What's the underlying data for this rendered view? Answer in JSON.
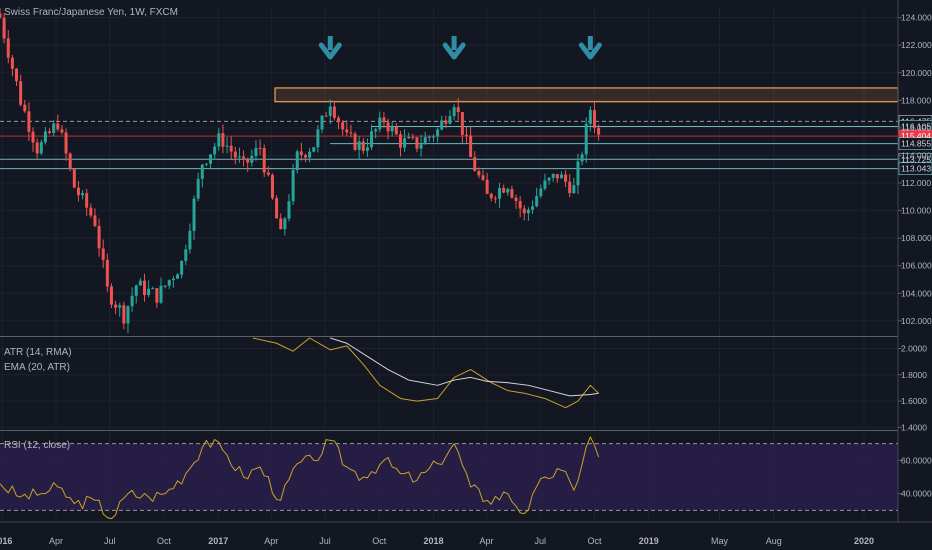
{
  "header": {
    "title": "Swiss Franc/Japanese Yen, 1W, FXCM"
  },
  "indicators": {
    "atr_label": "ATR (14, RMA)",
    "ema_label": "EMA (20, ATR)",
    "rsi_label": "RSI (12, close)"
  },
  "colors": {
    "background": "#131722",
    "up": "#26a69a",
    "down": "#ef5350",
    "arrow": "#2f8ea6",
    "resistance": "#f0a050",
    "atr_line": "#c9a227",
    "ema_line": "#d8d8d8",
    "rsi_line": "#c9a227",
    "rsi_band": "#2a1f4a",
    "support": "#7fd3d6",
    "current_price": "#f23645"
  },
  "chart_data": [
    {
      "type": "candlestick",
      "title": "Swiss Franc/Japanese Yen, 1W, FXCM",
      "ylim": [
        100.9,
        124.7
      ],
      "y_ticks": [
        "124.000",
        "122.000",
        "120.000",
        "118.000",
        "116.000",
        "114.000",
        "112.000",
        "110.000",
        "108.000",
        "106.000",
        "104.000",
        "102.000"
      ],
      "x_labels": [
        "2016",
        "Apr",
        "Jul",
        "Oct",
        "2017",
        "Apr",
        "Jul",
        "Oct",
        "2018",
        "Apr",
        "Jul",
        "Oct",
        "2019",
        "May",
        "Aug",
        "2020"
      ],
      "close_path": [
        {
          "date": "2015-12-28",
          "close": 124.0
        },
        {
          "date": "2016-02-01",
          "close": 118.0
        },
        {
          "date": "2016-03-01",
          "close": 114.4
        },
        {
          "date": "2016-04-04",
          "close": 116.4
        },
        {
          "date": "2016-05-01",
          "close": 111.8
        },
        {
          "date": "2016-06-06",
          "close": 109.2
        },
        {
          "date": "2016-06-27",
          "close": 104.2
        },
        {
          "date": "2016-07-25",
          "close": 102.4
        },
        {
          "date": "2016-08-15",
          "close": 104.6
        },
        {
          "date": "2016-09-20",
          "close": 103.8
        },
        {
          "date": "2016-10-31",
          "close": 106.2
        },
        {
          "date": "2016-12-05",
          "close": 113.5
        },
        {
          "date": "2017-01-05",
          "close": 115.3
        },
        {
          "date": "2017-02-13",
          "close": 113.2
        },
        {
          "date": "2017-03-13",
          "close": 114.6
        },
        {
          "date": "2017-04-17",
          "close": 108.1
        },
        {
          "date": "2017-05-15",
          "close": 113.9
        },
        {
          "date": "2017-06-12",
          "close": 114.8
        },
        {
          "date": "2017-07-10",
          "close": 118.0
        },
        {
          "date": "2017-08-07",
          "close": 115.2
        },
        {
          "date": "2017-09-04",
          "close": 114.6
        },
        {
          "date": "2017-10-09",
          "close": 116.6
        },
        {
          "date": "2017-11-06",
          "close": 115.0
        },
        {
          "date": "2017-12-04",
          "close": 114.8
        },
        {
          "date": "2018-01-08",
          "close": 115.8
        },
        {
          "date": "2018-02-05",
          "close": 118.0
        },
        {
          "date": "2018-03-05",
          "close": 113.8
        },
        {
          "date": "2018-04-02",
          "close": 111.0
        },
        {
          "date": "2018-05-07",
          "close": 112.0
        },
        {
          "date": "2018-06-04",
          "close": 109.6
        },
        {
          "date": "2018-07-02",
          "close": 111.6
        },
        {
          "date": "2018-07-30",
          "close": 112.6
        },
        {
          "date": "2018-08-27",
          "close": 111.6
        },
        {
          "date": "2018-09-17",
          "close": 115.8
        },
        {
          "date": "2018-09-24",
          "close": 117.4
        },
        {
          "date": "2018-10-08",
          "close": 115.4
        }
      ],
      "horizontal_levels": [
        {
          "value": 116.475,
          "label": "116.475",
          "style": "dashed"
        },
        {
          "value": 116.105,
          "label": "116.105",
          "style": "support"
        },
        {
          "value": 115.404,
          "label": "115.404",
          "style": "current"
        },
        {
          "value": 114.855,
          "label": "114.855",
          "style": "support"
        },
        {
          "value": 113.725,
          "label": "113.725",
          "style": "support"
        },
        {
          "value": 113.043,
          "label": "113.043",
          "style": "support"
        }
      ],
      "resistance_zone": [
        117.9,
        118.9
      ],
      "arrows_at": [
        "2017-07-10",
        "2018-02-05",
        "2018-09-24"
      ]
    },
    {
      "type": "line",
      "title": "ATR (14, RMA)",
      "ylim": [
        1.38,
        2.08
      ],
      "y_ticks": [
        "2.0000",
        "1.8000",
        "1.6000",
        "1.4000"
      ],
      "series": [
        {
          "name": "ATR (14, RMA)",
          "points": [
            {
              "date": "2017-03-01",
              "v": 2.1
            },
            {
              "date": "2017-04-10",
              "v": 2.04
            },
            {
              "date": "2017-05-08",
              "v": 1.98
            },
            {
              "date": "2017-06-05",
              "v": 2.08
            },
            {
              "date": "2017-07-10",
              "v": 1.99
            },
            {
              "date": "2017-08-07",
              "v": 2.02
            },
            {
              "date": "2017-09-04",
              "v": 1.88
            },
            {
              "date": "2017-10-02",
              "v": 1.72
            },
            {
              "date": "2017-11-06",
              "v": 1.62
            },
            {
              "date": "2017-12-04",
              "v": 1.6
            },
            {
              "date": "2018-01-08",
              "v": 1.62
            },
            {
              "date": "2018-02-05",
              "v": 1.78
            },
            {
              "date": "2018-03-05",
              "v": 1.84
            },
            {
              "date": "2018-04-09",
              "v": 1.74
            },
            {
              "date": "2018-05-07",
              "v": 1.68
            },
            {
              "date": "2018-06-04",
              "v": 1.66
            },
            {
              "date": "2018-07-09",
              "v": 1.62
            },
            {
              "date": "2018-08-13",
              "v": 1.55
            },
            {
              "date": "2018-09-03",
              "v": 1.6
            },
            {
              "date": "2018-09-24",
              "v": 1.72
            },
            {
              "date": "2018-10-08",
              "v": 1.66
            }
          ]
        },
        {
          "name": "EMA (20, ATR)",
          "points": [
            {
              "date": "2017-07-10",
              "v": 2.08
            },
            {
              "date": "2017-08-07",
              "v": 2.04
            },
            {
              "date": "2017-09-11",
              "v": 1.94
            },
            {
              "date": "2017-10-16",
              "v": 1.84
            },
            {
              "date": "2017-11-20",
              "v": 1.76
            },
            {
              "date": "2018-01-08",
              "v": 1.72
            },
            {
              "date": "2018-02-05",
              "v": 1.76
            },
            {
              "date": "2018-03-05",
              "v": 1.78
            },
            {
              "date": "2018-04-02",
              "v": 1.75
            },
            {
              "date": "2018-05-07",
              "v": 1.74
            },
            {
              "date": "2018-06-11",
              "v": 1.72
            },
            {
              "date": "2018-07-16",
              "v": 1.68
            },
            {
              "date": "2018-08-20",
              "v": 1.64
            },
            {
              "date": "2018-09-24",
              "v": 1.65
            },
            {
              "date": "2018-10-08",
              "v": 1.66
            }
          ]
        }
      ]
    },
    {
      "type": "line",
      "title": "RSI (12, close)",
      "ylim": [
        23,
        77
      ],
      "y_ticks": [
        "60.0000",
        "40.0000"
      ],
      "band": [
        30,
        70
      ],
      "series": [
        {
          "name": "RSI (12, close)",
          "points": [
            {
              "date": "2015-12-28",
              "v": 46
            },
            {
              "date": "2016-02-01",
              "v": 38
            },
            {
              "date": "2016-03-07",
              "v": 40
            },
            {
              "date": "2016-04-04",
              "v": 44
            },
            {
              "date": "2016-05-02",
              "v": 34
            },
            {
              "date": "2016-06-06",
              "v": 36
            },
            {
              "date": "2016-07-04",
              "v": 25
            },
            {
              "date": "2016-08-01",
              "v": 40
            },
            {
              "date": "2016-09-05",
              "v": 38
            },
            {
              "date": "2016-10-03",
              "v": 40
            },
            {
              "date": "2016-11-07",
              "v": 52
            },
            {
              "date": "2016-12-12",
              "v": 72
            },
            {
              "date": "2017-01-09",
              "v": 66
            },
            {
              "date": "2017-02-13",
              "v": 50
            },
            {
              "date": "2017-03-13",
              "v": 56
            },
            {
              "date": "2017-04-17",
              "v": 36
            },
            {
              "date": "2017-05-15",
              "v": 58
            },
            {
              "date": "2017-06-12",
              "v": 60
            },
            {
              "date": "2017-07-10",
              "v": 72
            },
            {
              "date": "2017-08-07",
              "v": 56
            },
            {
              "date": "2017-09-04",
              "v": 50
            },
            {
              "date": "2017-10-09",
              "v": 60
            },
            {
              "date": "2017-11-06",
              "v": 52
            },
            {
              "date": "2017-12-04",
              "v": 48
            },
            {
              "date": "2018-01-08",
              "v": 58
            },
            {
              "date": "2018-02-05",
              "v": 70
            },
            {
              "date": "2018-03-05",
              "v": 44
            },
            {
              "date": "2018-04-02",
              "v": 36
            },
            {
              "date": "2018-05-07",
              "v": 40
            },
            {
              "date": "2018-06-04",
              "v": 28
            },
            {
              "date": "2018-07-09",
              "v": 50
            },
            {
              "date": "2018-08-06",
              "v": 54
            },
            {
              "date": "2018-08-27",
              "v": 42
            },
            {
              "date": "2018-09-17",
              "v": 68
            },
            {
              "date": "2018-09-24",
              "v": 74
            },
            {
              "date": "2018-10-08",
              "v": 62
            }
          ]
        }
      ]
    }
  ]
}
